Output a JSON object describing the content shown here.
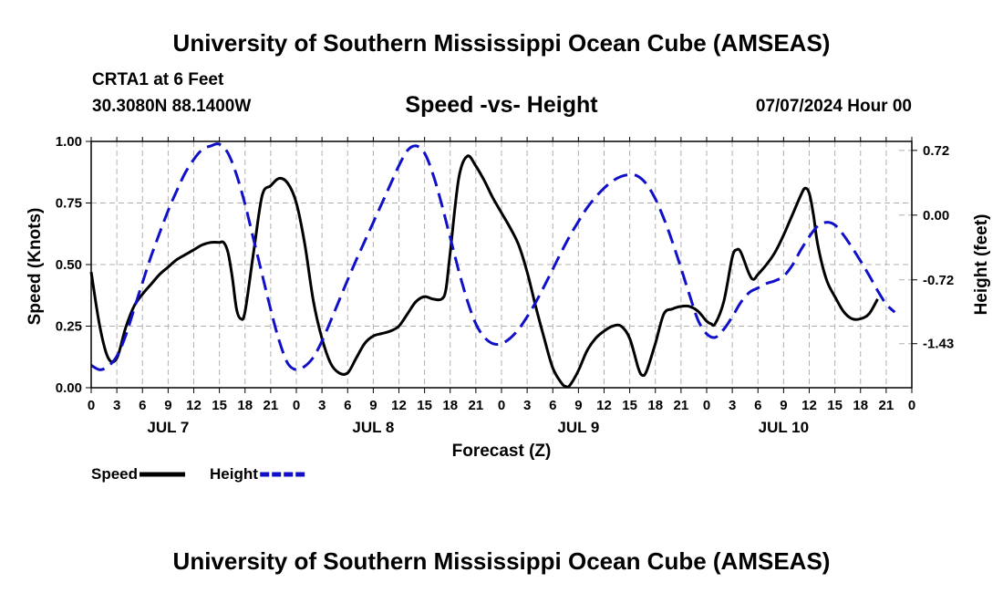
{
  "header": {
    "title": "University of Southern Mississippi Ocean Cube (AMSEAS)",
    "station": "CRTA1 at 6 Feet",
    "coords": "30.3080N  88.1400W",
    "datetime": "07/07/2024 Hour 00"
  },
  "footer": {
    "title": "University of Southern Mississippi Ocean Cube (AMSEAS)"
  },
  "chart_data": {
    "type": "line",
    "title": "Speed -vs- Height",
    "xlabel": "Forecast (Z)",
    "ylabel_left": "Speed (Knots)",
    "ylabel_right": "Height (feet)",
    "xlim": [
      0,
      96
    ],
    "ylim_left": [
      0,
      1.0
    ],
    "ylim_right": [
      -1.92,
      0.82
    ],
    "hour_ticks": [
      "0",
      "3",
      "6",
      "9",
      "12",
      "15",
      "18",
      "21",
      "0",
      "3",
      "6",
      "9",
      "12",
      "15",
      "18",
      "21",
      "0",
      "3",
      "6",
      "9",
      "12",
      "15",
      "18",
      "21",
      "0",
      "3",
      "6",
      "9",
      "12",
      "15",
      "18",
      "21",
      "0"
    ],
    "left_ticks": [
      {
        "value": 0.0,
        "label": "0.00"
      },
      {
        "value": 0.25,
        "label": "0.25"
      },
      {
        "value": 0.5,
        "label": "0.50"
      },
      {
        "value": 0.75,
        "label": "0.75"
      },
      {
        "value": 1.0,
        "label": "1.00"
      }
    ],
    "right_ticks": [
      {
        "value": 0.72,
        "label": "0.72"
      },
      {
        "value": 0.0,
        "label": "0.00"
      },
      {
        "value": -0.72,
        "label": "-0.72"
      },
      {
        "value": -1.43,
        "label": "-1.43"
      }
    ],
    "day_labels": [
      {
        "hour": 9,
        "label": "JUL 7"
      },
      {
        "hour": 33,
        "label": "JUL 8"
      },
      {
        "hour": 57,
        "label": "JUL 9"
      },
      {
        "hour": 81,
        "label": "JUL 10"
      }
    ],
    "series": [
      {
        "name": "Speed",
        "color": "#000000",
        "style": "solid",
        "axis": "left",
        "points": [
          [
            0,
            0.47
          ],
          [
            1,
            0.25
          ],
          [
            2,
            0.12
          ],
          [
            3,
            0.12
          ],
          [
            4,
            0.24
          ],
          [
            5,
            0.33
          ],
          [
            6,
            0.38
          ],
          [
            7,
            0.42
          ],
          [
            8,
            0.46
          ],
          [
            9,
            0.49
          ],
          [
            10,
            0.52
          ],
          [
            11,
            0.54
          ],
          [
            12,
            0.56
          ],
          [
            13,
            0.58
          ],
          [
            14,
            0.59
          ],
          [
            15,
            0.59
          ],
          [
            15.5,
            0.59
          ],
          [
            16,
            0.55
          ],
          [
            16.5,
            0.45
          ],
          [
            17,
            0.32
          ],
          [
            17.5,
            0.28
          ],
          [
            18,
            0.31
          ],
          [
            19,
            0.55
          ],
          [
            20,
            0.78
          ],
          [
            21,
            0.82
          ],
          [
            22,
            0.85
          ],
          [
            23,
            0.83
          ],
          [
            24,
            0.75
          ],
          [
            25,
            0.58
          ],
          [
            26,
            0.35
          ],
          [
            27,
            0.2
          ],
          [
            28,
            0.1
          ],
          [
            29,
            0.06
          ],
          [
            30,
            0.06
          ],
          [
            31,
            0.12
          ],
          [
            32,
            0.18
          ],
          [
            33,
            0.21
          ],
          [
            34,
            0.22
          ],
          [
            35,
            0.23
          ],
          [
            36,
            0.25
          ],
          [
            37,
            0.3
          ],
          [
            38,
            0.35
          ],
          [
            39,
            0.37
          ],
          [
            40,
            0.36
          ],
          [
            41,
            0.36
          ],
          [
            41.5,
            0.4
          ],
          [
            42,
            0.55
          ],
          [
            43,
            0.85
          ],
          [
            44,
            0.94
          ],
          [
            45,
            0.9
          ],
          [
            46,
            0.84
          ],
          [
            47,
            0.77
          ],
          [
            48,
            0.71
          ],
          [
            49,
            0.65
          ],
          [
            50,
            0.58
          ],
          [
            51,
            0.47
          ],
          [
            52,
            0.33
          ],
          [
            53,
            0.2
          ],
          [
            54,
            0.08
          ],
          [
            55,
            0.02
          ],
          [
            55.5,
            0.005
          ],
          [
            56,
            0.01
          ],
          [
            57,
            0.07
          ],
          [
            58,
            0.15
          ],
          [
            59,
            0.2
          ],
          [
            60,
            0.23
          ],
          [
            61,
            0.25
          ],
          [
            62,
            0.25
          ],
          [
            63,
            0.2
          ],
          [
            64,
            0.08
          ],
          [
            64.5,
            0.05
          ],
          [
            65,
            0.07
          ],
          [
            66,
            0.18
          ],
          [
            67,
            0.3
          ],
          [
            68,
            0.32
          ],
          [
            69,
            0.33
          ],
          [
            70,
            0.33
          ],
          [
            71,
            0.31
          ],
          [
            72,
            0.27
          ],
          [
            72.5,
            0.26
          ],
          [
            73,
            0.26
          ],
          [
            74,
            0.35
          ],
          [
            75,
            0.53
          ],
          [
            75.5,
            0.56
          ],
          [
            76,
            0.55
          ],
          [
            77,
            0.46
          ],
          [
            77.5,
            0.44
          ],
          [
            78,
            0.46
          ],
          [
            79,
            0.5
          ],
          [
            80,
            0.55
          ],
          [
            81,
            0.62
          ],
          [
            82,
            0.7
          ],
          [
            83,
            0.78
          ],
          [
            83.5,
            0.81
          ],
          [
            84,
            0.79
          ],
          [
            84.5,
            0.7
          ],
          [
            85,
            0.58
          ],
          [
            86,
            0.44
          ],
          [
            87,
            0.37
          ],
          [
            88,
            0.31
          ],
          [
            89,
            0.28
          ],
          [
            90,
            0.28
          ],
          [
            91,
            0.3
          ],
          [
            92,
            0.36
          ]
        ]
      },
      {
        "name": "Height",
        "color": "#1010c8",
        "style": "dashed",
        "axis": "right",
        "points": [
          [
            0,
            -1.67
          ],
          [
            1,
            -1.72
          ],
          [
            2,
            -1.68
          ],
          [
            3,
            -1.57
          ],
          [
            4,
            -1.35
          ],
          [
            5,
            -1.05
          ],
          [
            6,
            -0.75
          ],
          [
            7,
            -0.46
          ],
          [
            8,
            -0.2
          ],
          [
            9,
            0.05
          ],
          [
            10,
            0.27
          ],
          [
            11,
            0.47
          ],
          [
            12,
            0.62
          ],
          [
            13,
            0.73
          ],
          [
            14,
            0.77
          ],
          [
            15,
            0.79
          ],
          [
            16,
            0.69
          ],
          [
            17,
            0.45
          ],
          [
            18,
            0.12
          ],
          [
            19,
            -0.27
          ],
          [
            20,
            -0.66
          ],
          [
            21,
            -1.05
          ],
          [
            22,
            -1.4
          ],
          [
            23,
            -1.65
          ],
          [
            24,
            -1.72
          ],
          [
            25,
            -1.68
          ],
          [
            26,
            -1.58
          ],
          [
            27,
            -1.4
          ],
          [
            28,
            -1.18
          ],
          [
            29,
            -0.95
          ],
          [
            30,
            -0.72
          ],
          [
            31,
            -0.5
          ],
          [
            32,
            -0.29
          ],
          [
            33,
            -0.08
          ],
          [
            34,
            0.13
          ],
          [
            35,
            0.34
          ],
          [
            36,
            0.55
          ],
          [
            37,
            0.72
          ],
          [
            38,
            0.77
          ],
          [
            39,
            0.69
          ],
          [
            40,
            0.45
          ],
          [
            41,
            0.12
          ],
          [
            42,
            -0.25
          ],
          [
            43,
            -0.62
          ],
          [
            44,
            -0.95
          ],
          [
            45,
            -1.21
          ],
          [
            46,
            -1.36
          ],
          [
            47,
            -1.43
          ],
          [
            48,
            -1.43
          ],
          [
            49,
            -1.37
          ],
          [
            50,
            -1.27
          ],
          [
            51,
            -1.13
          ],
          [
            52,
            -0.97
          ],
          [
            53,
            -0.79
          ],
          [
            54,
            -0.6
          ],
          [
            55,
            -0.41
          ],
          [
            56,
            -0.23
          ],
          [
            57,
            -0.07
          ],
          [
            58,
            0.08
          ],
          [
            59,
            0.2
          ],
          [
            60,
            0.3
          ],
          [
            61,
            0.38
          ],
          [
            62,
            0.43
          ],
          [
            63,
            0.45
          ],
          [
            64,
            0.43
          ],
          [
            65,
            0.34
          ],
          [
            66,
            0.18
          ],
          [
            67,
            -0.04
          ],
          [
            68,
            -0.3
          ],
          [
            69,
            -0.59
          ],
          [
            70,
            -0.89
          ],
          [
            71,
            -1.17
          ],
          [
            72,
            -1.32
          ],
          [
            73,
            -1.36
          ],
          [
            74,
            -1.27
          ],
          [
            75,
            -1.13
          ],
          [
            76,
            -0.97
          ],
          [
            77,
            -0.86
          ],
          [
            78,
            -0.81
          ],
          [
            79,
            -0.76
          ],
          [
            80,
            -0.73
          ],
          [
            81,
            -0.68
          ],
          [
            82,
            -0.56
          ],
          [
            83,
            -0.39
          ],
          [
            84,
            -0.24
          ],
          [
            85,
            -0.12
          ],
          [
            86,
            -0.08
          ],
          [
            87,
            -0.11
          ],
          [
            88,
            -0.22
          ],
          [
            89,
            -0.36
          ],
          [
            90,
            -0.51
          ],
          [
            91,
            -0.67
          ],
          [
            92,
            -0.84
          ],
          [
            93,
            -0.99
          ],
          [
            94,
            -1.08
          ]
        ]
      }
    ],
    "legend": [
      {
        "label": "Speed",
        "color": "#000000",
        "style": "solid"
      },
      {
        "label": "Height",
        "color": "#1010c8",
        "style": "dashed"
      }
    ]
  }
}
